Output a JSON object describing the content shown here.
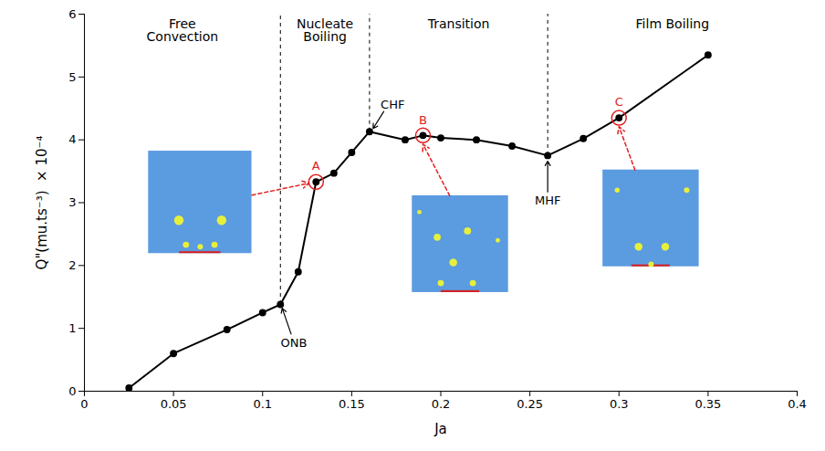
{
  "chart_data": {
    "type": "line",
    "x_label": "Ja",
    "y_label": "Q\"(mu.ts⁻³)  × 10⁻⁴",
    "x": [
      0.025,
      0.05,
      0.08,
      0.1,
      0.11,
      0.12,
      0.13,
      0.14,
      0.15,
      0.16,
      0.18,
      0.19,
      0.2,
      0.22,
      0.24,
      0.26,
      0.28,
      0.3,
      0.35
    ],
    "values": [
      0.05,
      0.6,
      0.98,
      1.25,
      1.38,
      1.9,
      3.33,
      3.47,
      3.8,
      4.13,
      4.0,
      4.07,
      4.03,
      4.0,
      3.9,
      3.75,
      4.02,
      4.35,
      5.35
    ],
    "color": "#000000",
    "marker": "circle",
    "xlim": [
      0,
      0.4
    ],
    "xticks": [
      0,
      0.05,
      0.1,
      0.15,
      0.2,
      0.25,
      0.3,
      0.35,
      0.4
    ],
    "ylim": [
      0,
      6
    ],
    "yticks": [
      0,
      1,
      2,
      3,
      4,
      5,
      6
    ],
    "grid": false,
    "regions": [
      "Free\nConvection",
      "Nucleate\nBoiling",
      "Transition",
      "Film Boiling"
    ],
    "boundaries": [
      0.11,
      0.16,
      0.26
    ],
    "annotations": [
      {
        "text": "ONB",
        "x": 0.11
      },
      {
        "text": "CHF",
        "x": 0.16
      },
      {
        "text": "MHF",
        "x": 0.26
      }
    ],
    "highlights": [
      {
        "label": "A",
        "x": 0.13,
        "color": "#e02020"
      },
      {
        "label": "B",
        "x": 0.19,
        "color": "#e02020"
      },
      {
        "label": "C",
        "x": 0.3,
        "color": "#e02020"
      }
    ]
  }
}
